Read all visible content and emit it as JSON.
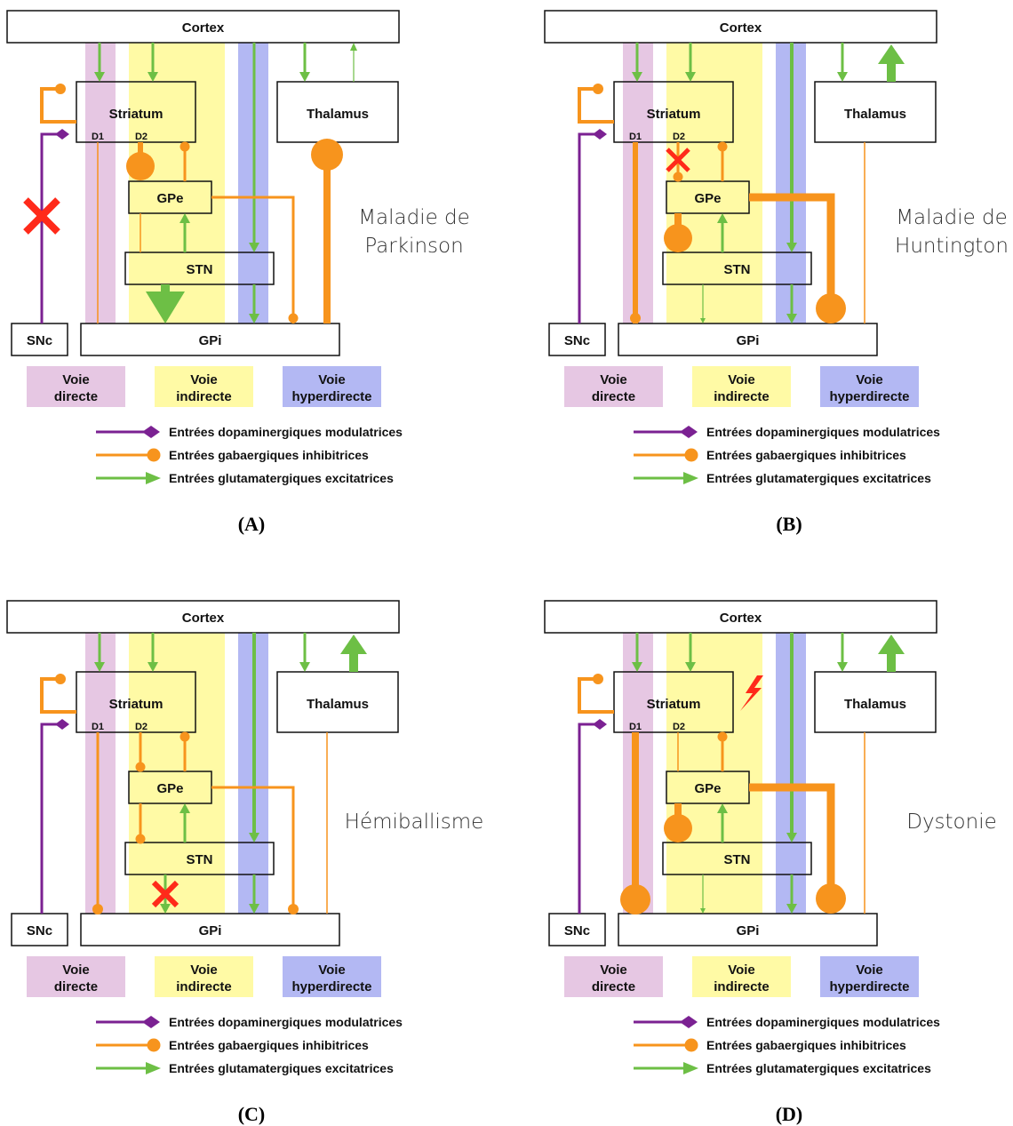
{
  "colors": {
    "directe": "#e6c7e3",
    "indirecte": "#fffaa5",
    "hyperdirecte": "#b3b8f3",
    "dopamine": "#7b2192",
    "gaba": "#f7941d",
    "glutamate": "#6dbf45",
    "lesion": "#ff2a1a"
  },
  "icons": {
    "lesion": "red-x-icon",
    "lesion_lightning": "lightning-bolt-icon"
  },
  "nodes": {
    "cortex": "Cortex",
    "striatum": "Striatum",
    "thalamus": "Thalamus",
    "gpe": "GPe",
    "stn": "STN",
    "gpi": "GPi",
    "snc": "SNc",
    "d1": "D1",
    "d2": "D2"
  },
  "pathways": {
    "directe": [
      "Voie",
      "directe"
    ],
    "indirecte": [
      "Voie",
      "indirecte"
    ],
    "hyperdirecte": [
      "Voie",
      "hyperdirecte"
    ]
  },
  "legend": {
    "dopamine": "Entrées dopaminergiques modulatrices",
    "gaba": "Entrées gabaergiques inhibitrices",
    "glutamate": "Entrées glutamatergiques excitatrices"
  },
  "panels": [
    {
      "caption": "(A)",
      "condition": [
        "Maladie de",
        "Parkinson"
      ]
    },
    {
      "caption": "(B)",
      "condition": [
        "Maladie de",
        "Huntington"
      ]
    },
    {
      "caption": "(C)",
      "condition": [
        "Hémiballisme"
      ]
    },
    {
      "caption": "(D)",
      "condition": [
        "Dystonie"
      ]
    }
  ]
}
